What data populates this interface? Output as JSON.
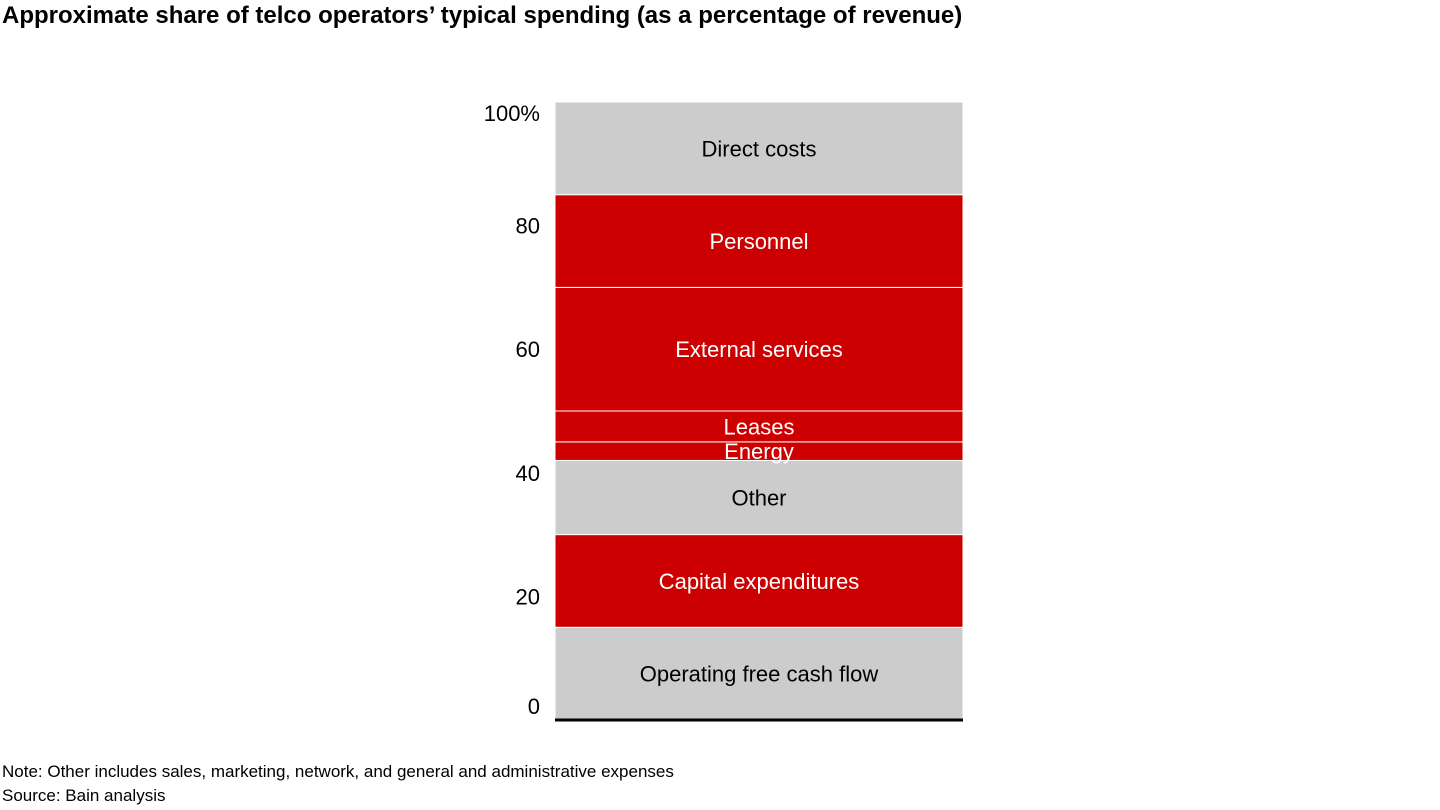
{
  "chart_data": {
    "type": "bar",
    "stacked": true,
    "title": "Approximate share of telco operators’ typical spending (as a percentage of revenue)",
    "ylim": [
      0,
      100
    ],
    "y_ticks": [
      {
        "value": 0,
        "label": "0"
      },
      {
        "value": 20,
        "label": "20"
      },
      {
        "value": 40,
        "label": "40"
      },
      {
        "value": 60,
        "label": "60"
      },
      {
        "value": 80,
        "label": "80"
      },
      {
        "value": 100,
        "label": "100%"
      }
    ],
    "grid": false,
    "segments": [
      {
        "name": "Operating free cash flow",
        "value": 15,
        "color": "#cccccc",
        "label_color": "#000000"
      },
      {
        "name": "Capital expenditures",
        "value": 15,
        "color": "#cc0000",
        "label_color": "#ffffff"
      },
      {
        "name": "Other",
        "value": 12,
        "color": "#cccccc",
        "label_color": "#000000"
      },
      {
        "name": "Energy",
        "value": 3,
        "color": "#cc0000",
        "label_color": "#ffffff"
      },
      {
        "name": "Leases",
        "value": 5,
        "color": "#cc0000",
        "label_color": "#ffffff"
      },
      {
        "name": "External services",
        "value": 20,
        "color": "#cc0000",
        "label_color": "#ffffff"
      },
      {
        "name": "Personnel",
        "value": 15,
        "color": "#cc0000",
        "label_color": "#ffffff"
      },
      {
        "name": "Direct costs",
        "value": 15,
        "color": "#cccccc",
        "label_color": "#000000"
      }
    ]
  },
  "footnotes": {
    "note": "Note: Other includes sales, marketing, network, and general and administrative expenses",
    "source": "Source: Bain analysis"
  }
}
